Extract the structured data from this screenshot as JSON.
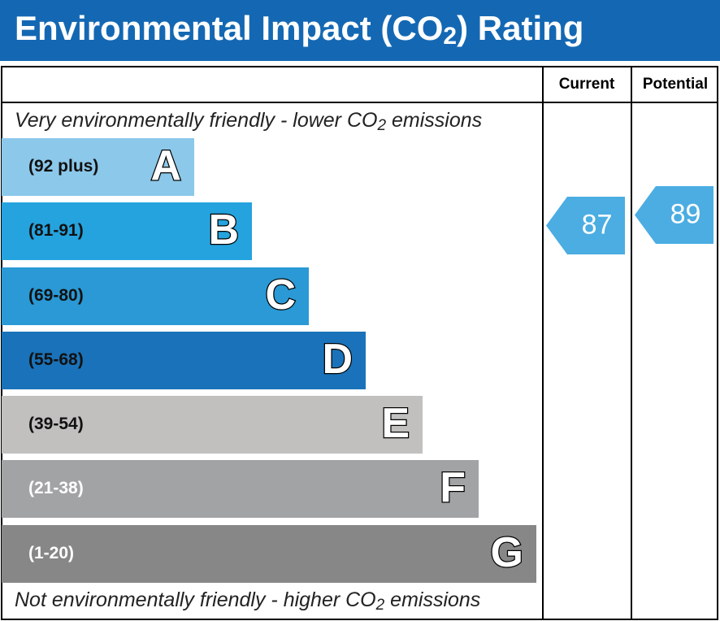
{
  "header": {
    "title": [
      "Environmental Impact (CO",
      "2",
      ") Rating"
    ]
  },
  "columns": [
    "Current",
    "Potential"
  ],
  "top_note": [
    "Very environmentally friendly - lower CO",
    "2",
    " emissions"
  ],
  "bottom_note": [
    "Not environmentally friendly - higher CO",
    "2",
    " emissions"
  ],
  "bands": [
    {
      "range": "(92 plus)",
      "letter": "A",
      "color": "#8cc8ea"
    },
    {
      "range": "(81-91)",
      "letter": "B",
      "color": "#25a3de"
    },
    {
      "range": "(69-80)",
      "letter": "C",
      "color": "#2a99d5"
    },
    {
      "range": "(55-68)",
      "letter": "D",
      "color": "#1a73ba"
    },
    {
      "range": "(39-54)",
      "letter": "E",
      "color": "#c1c0bf"
    },
    {
      "range": "(21-38)",
      "letter": "F",
      "color": "#a2a3a5"
    },
    {
      "range": "(1-20)",
      "letter": "G",
      "color": "#878787"
    }
  ],
  "current": {
    "value": "87",
    "color": "#4badE2"
  },
  "potential": {
    "value": "89",
    "color": "#4badE2"
  }
}
